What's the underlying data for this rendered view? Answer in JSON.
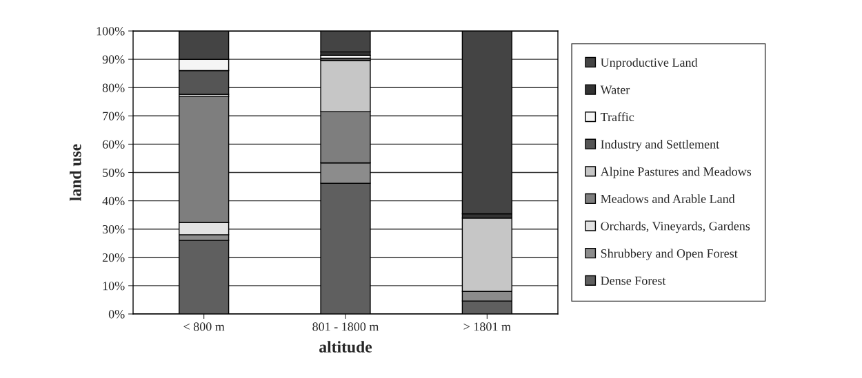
{
  "chart_data": {
    "type": "bar",
    "stacked": true,
    "xlabel": "altitude",
    "ylabel": "land use",
    "categories": [
      "< 800 m",
      "801 - 1800 m",
      "> 1801 m"
    ],
    "series": [
      {
        "name": "Dense Forest",
        "color": "#5f5f5f",
        "values": [
          26,
          46.2,
          4.6
        ]
      },
      {
        "name": "Shrubbery and Open Forest",
        "color": "#8c8c8c",
        "values": [
          2,
          7.2,
          3.4
        ]
      },
      {
        "name": "Orchards, Vineyards, Gardens",
        "color": "#e2e2e2",
        "values": [
          4.3,
          0,
          0
        ]
      },
      {
        "name": "Meadows and Arable Land",
        "color": "#7e7e7e",
        "values": [
          44.5,
          18.1,
          0
        ]
      },
      {
        "name": "Alpine Pastures and Meadows",
        "color": "#c6c6c6",
        "values": [
          0.8,
          18.1,
          25.9
        ]
      },
      {
        "name": "Industry and Settlement",
        "color": "#555555",
        "values": [
          8.4,
          0.8,
          0
        ]
      },
      {
        "name": "Traffic",
        "color": "#f5f5f5",
        "values": [
          4,
          1,
          0
        ]
      },
      {
        "name": "Water",
        "color": "#333333",
        "values": [
          0,
          1.2,
          1.5
        ]
      },
      {
        "name": "Unproductive Land",
        "color": "#444444",
        "values": [
          10,
          7.4,
          64.6
        ]
      }
    ],
    "ylim": [
      0,
      100
    ],
    "yticks": [
      {
        "value": 0,
        "label": "0%"
      },
      {
        "value": 10,
        "label": "10%"
      },
      {
        "value": 20,
        "label": "20%"
      },
      {
        "value": 30,
        "label": "30%"
      },
      {
        "value": 40,
        "label": "40%"
      },
      {
        "value": 50,
        "label": "50%"
      },
      {
        "value": 60,
        "label": "60%"
      },
      {
        "value": 70,
        "label": "70%"
      },
      {
        "value": 80,
        "label": "80%"
      },
      {
        "value": 90,
        "label": "90%"
      },
      {
        "value": 100,
        "label": "100%"
      }
    ],
    "grid": "y",
    "legend": "right"
  }
}
